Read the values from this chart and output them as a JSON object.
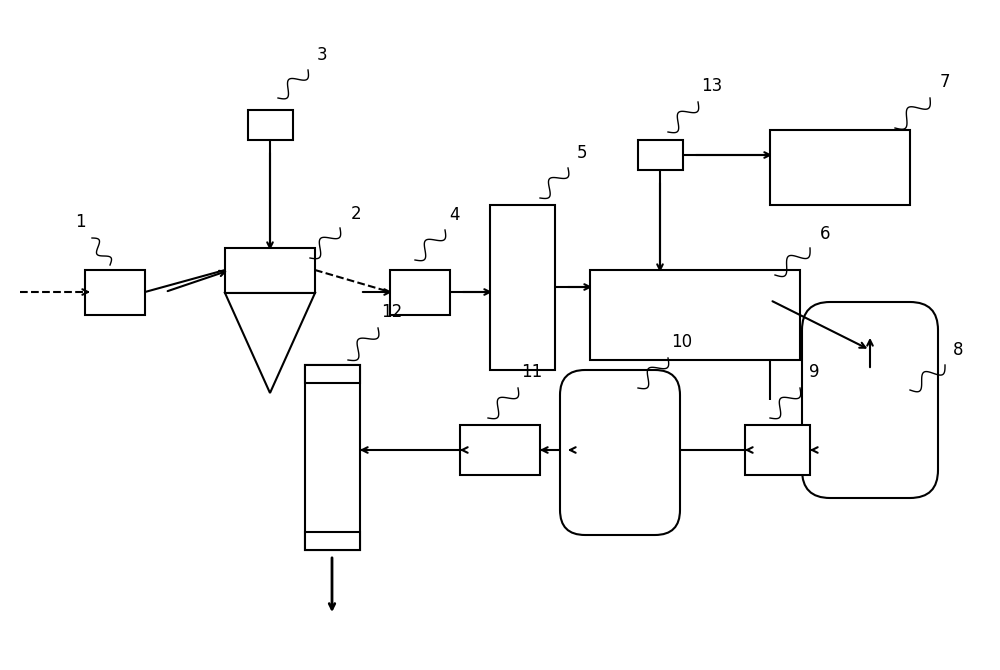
{
  "bg_color": "#ffffff",
  "line_color": "#000000",
  "fig_width": 10.0,
  "fig_height": 6.7,
  "dpi": 100,
  "lw": 1.5
}
